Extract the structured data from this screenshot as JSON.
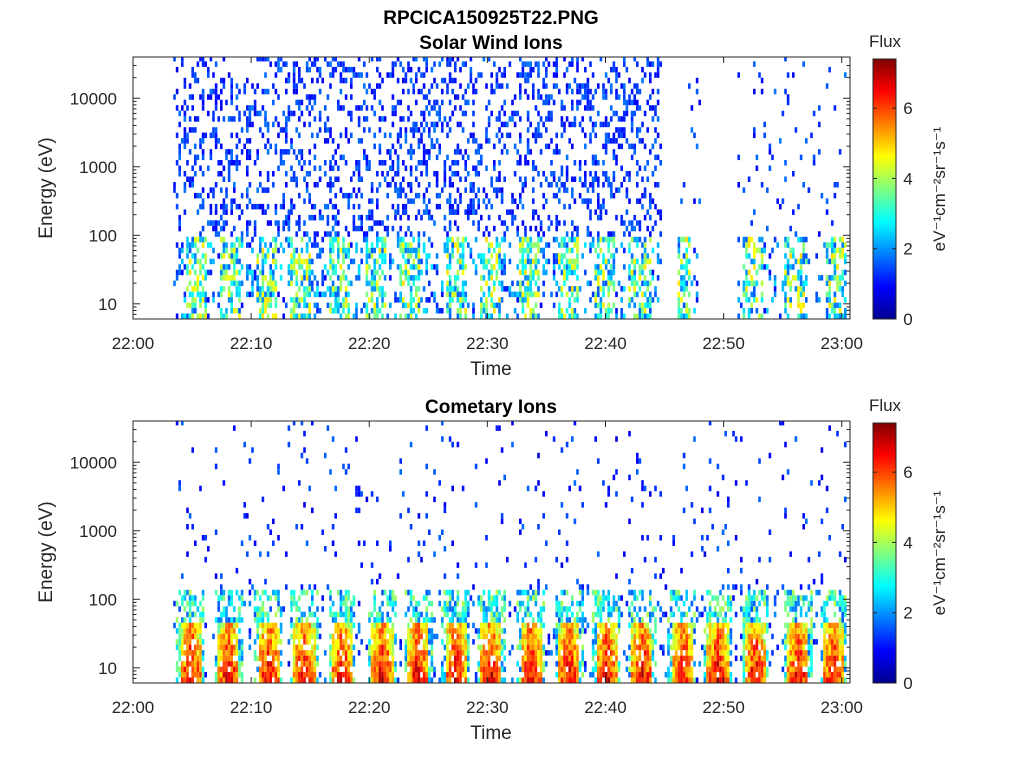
{
  "figure_title": "RPCICA150925T22.PNG",
  "chart_data": [
    {
      "type": "heatmap",
      "title": "Solar Wind Ions",
      "xlabel": "Time",
      "ylabel": "Energy (eV)",
      "x_ticks": [
        "22:00",
        "22:10",
        "22:20",
        "22:30",
        "22:40",
        "22:50",
        "23:00"
      ],
      "x_range_minutes": [
        0,
        60.7
      ],
      "y_scale": "log",
      "y_ticks": [
        10,
        100,
        1000,
        10000
      ],
      "y_tick_labels": [
        "10",
        "100",
        "1000",
        "10000"
      ],
      "y_range": [
        6,
        40000
      ],
      "colorbar": {
        "title": "Flux",
        "label": "eV⁻¹cm⁻²sr⁻¹s⁻¹",
        "range": [
          0,
          7.4
        ],
        "ticks": [
          0,
          2,
          4,
          6
        ],
        "colormap": "jet"
      },
      "activity_gaps_minutes": [
        [
          44.5,
          46.0
        ],
        [
          48.0,
          51.0
        ]
      ],
      "features": "Scattered low-flux (blue) detections from ~22:03 to ~22:45 across 10 eV to 30000 eV; enhanced flux (green/yellow) bursts below ~60 eV at periodic intervals; sparse detections 22:46 to 23:00",
      "low_energy_bursts_minutes": [
        5.2,
        8.2,
        11.2,
        14.0,
        17.4,
        20.4,
        23.4,
        27.2,
        30.2,
        33.4,
        36.8,
        39.8,
        42.8,
        46.2,
        49.2,
        52.4,
        56.0,
        59.4
      ]
    },
    {
      "type": "heatmap",
      "title": "Cometary Ions",
      "xlabel": "Time",
      "ylabel": "Energy (eV)",
      "x_ticks": [
        "22:00",
        "22:10",
        "22:20",
        "22:30",
        "22:40",
        "22:50",
        "23:00"
      ],
      "x_range_minutes": [
        0,
        60.7
      ],
      "y_scale": "log",
      "y_ticks": [
        10,
        100,
        1000,
        10000
      ],
      "y_tick_labels": [
        "10",
        "100",
        "1000",
        "10000"
      ],
      "y_range": [
        6,
        40000
      ],
      "colorbar": {
        "title": "Flux",
        "label": "eV⁻¹cm⁻²sr⁻¹s⁻¹",
        "range": [
          0,
          7.4
        ],
        "ticks": [
          0,
          2,
          4,
          6
        ],
        "colormap": "jet"
      },
      "features": "Periodic high-flux (red/orange) bursts at 10-40 eV roughly every 3 minutes from 22:04 to 23:00, with sparse blue detections extending up to ~10000 eV",
      "low_energy_bursts_minutes": [
        4.8,
        8.0,
        11.4,
        14.4,
        17.6,
        21.0,
        24.0,
        27.2,
        30.2,
        33.6,
        36.8,
        40.0,
        43.0,
        46.4,
        49.4,
        52.6,
        56.2,
        59.2
      ]
    }
  ]
}
